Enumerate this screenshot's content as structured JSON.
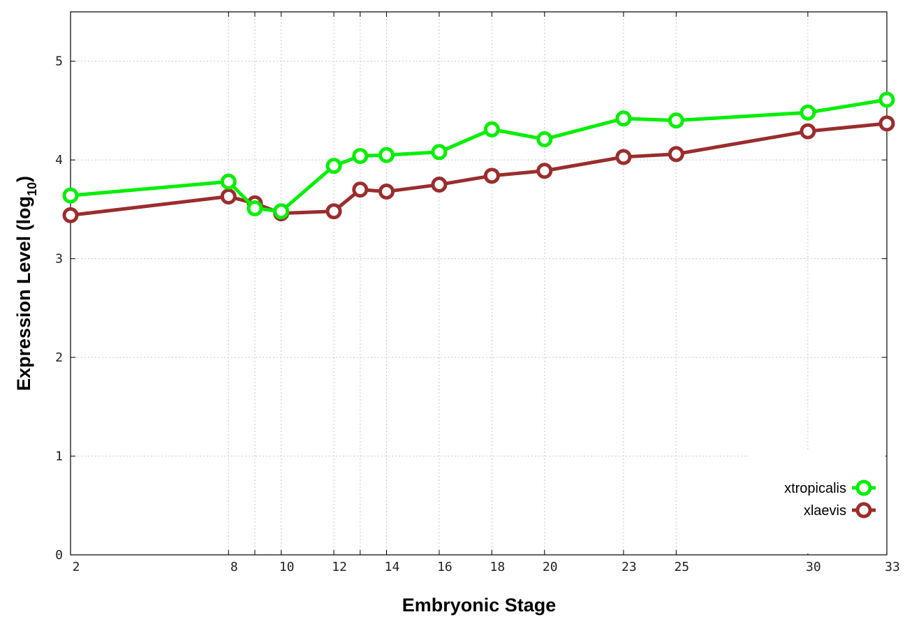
{
  "chart_data": {
    "type": "line",
    "xlabel": "Embryonic Stage",
    "ylabel_main": "Expression Level (log",
    "ylabel_sub": "10",
    "ylabel_close": ")",
    "xlim": [
      2,
      33
    ],
    "ylim": [
      0,
      5.5
    ],
    "x_ticks": [
      2,
      8,
      9,
      10,
      12,
      13,
      14,
      16,
      18,
      20,
      23,
      25,
      30,
      33
    ],
    "x_tick_labels": [
      "2",
      "8",
      "",
      "10",
      "12",
      "",
      "14",
      "16",
      "18",
      "20",
      "23",
      "25",
      "30",
      "33"
    ],
    "y_ticks": [
      0,
      1,
      2,
      3,
      4,
      5
    ],
    "y_tick_labels": [
      "0",
      "1",
      "2",
      "3",
      "4",
      "5"
    ],
    "grid": true,
    "legend_position": "bottom-right",
    "series": [
      {
        "name": "xtropicalis",
        "color": "#00ee00",
        "x": [
          2,
          8,
          9,
          10,
          12,
          13,
          14,
          16,
          18,
          20,
          23,
          25,
          30,
          33
        ],
        "y": [
          3.64,
          3.78,
          3.51,
          3.48,
          3.94,
          4.04,
          4.05,
          4.08,
          4.31,
          4.21,
          4.42,
          4.4,
          4.48,
          4.61
        ]
      },
      {
        "name": "xlaevis",
        "color": "#9b2d2d",
        "x": [
          2,
          8,
          9,
          10,
          12,
          13,
          14,
          16,
          18,
          20,
          23,
          25,
          30,
          33
        ],
        "y": [
          3.44,
          3.63,
          3.56,
          3.46,
          3.48,
          3.7,
          3.68,
          3.75,
          3.84,
          3.89,
          4.03,
          4.06,
          4.29,
          4.37
        ]
      }
    ]
  }
}
